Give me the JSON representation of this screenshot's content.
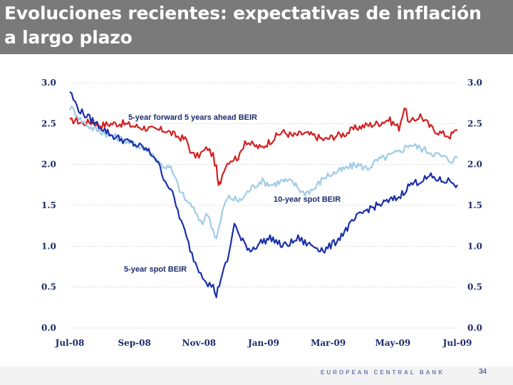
{
  "slide": {
    "title_line1": "Evoluciones recientes: expectativas de inflación",
    "title_line2": "a largo plazo",
    "footer_bank": "EUROPEAN CENTRAL BANK",
    "page_number": "34"
  },
  "colors": {
    "forward": "#d42020",
    "spot10": "#9fcbe8",
    "spot5": "#1a2fa8",
    "axis_text": "#1b2b6b",
    "grid": "#c8c8c8"
  },
  "chart_data": {
    "type": "line",
    "title": "",
    "xlabel": "",
    "ylabel": "",
    "ylim": [
      0.0,
      3.0
    ],
    "yticks": [
      "0.0",
      "0.5",
      "1.0",
      "1.5",
      "2.0",
      "2.5",
      "3.0"
    ],
    "xticks": [
      "Jul-08",
      "Sep-08",
      "Nov-08",
      "Jan-09",
      "Mar-09",
      "May-09",
      "Jul-09"
    ],
    "x_start": "2008-07-01",
    "x_end": "2009-07-01",
    "series": [
      {
        "name": "5-year forward 5 years ahead BEIR",
        "label": "5-year forward 5 years ahead BEIR",
        "color_key": "forward",
        "points": [
          [
            0,
            2.52
          ],
          [
            5,
            2.55
          ],
          [
            12,
            2.5
          ],
          [
            20,
            2.52
          ],
          [
            30,
            2.48
          ],
          [
            40,
            2.5
          ],
          [
            50,
            2.5
          ],
          [
            60,
            2.47
          ],
          [
            70,
            2.45
          ],
          [
            80,
            2.42
          ],
          [
            90,
            2.42
          ],
          [
            100,
            2.35
          ],
          [
            110,
            2.3
          ],
          [
            115,
            2.12
          ],
          [
            120,
            2.1
          ],
          [
            125,
            2.15
          ],
          [
            130,
            2.2
          ],
          [
            135,
            2.1
          ],
          [
            138,
            1.95
          ],
          [
            140,
            1.72
          ],
          [
            142,
            1.8
          ],
          [
            145,
            1.95
          ],
          [
            150,
            2.05
          ],
          [
            160,
            2.1
          ],
          [
            165,
            2.3
          ],
          [
            170,
            2.25
          ],
          [
            180,
            2.2
          ],
          [
            190,
            2.3
          ],
          [
            200,
            2.4
          ],
          [
            210,
            2.35
          ],
          [
            220,
            2.38
          ],
          [
            230,
            2.35
          ],
          [
            240,
            2.3
          ],
          [
            250,
            2.35
          ],
          [
            260,
            2.38
          ],
          [
            270,
            2.45
          ],
          [
            280,
            2.48
          ],
          [
            290,
            2.5
          ],
          [
            300,
            2.55
          ],
          [
            310,
            2.45
          ],
          [
            315,
            2.7
          ],
          [
            320,
            2.5
          ],
          [
            330,
            2.6
          ],
          [
            340,
            2.45
          ],
          [
            350,
            2.38
          ],
          [
            358,
            2.35
          ],
          [
            365,
            2.42
          ]
        ]
      },
      {
        "name": "10-year spot BEIR",
        "label": "10-year spot BEIR",
        "color_key": "spot10",
        "points": [
          [
            0,
            2.7
          ],
          [
            5,
            2.65
          ],
          [
            10,
            2.55
          ],
          [
            20,
            2.45
          ],
          [
            30,
            2.4
          ],
          [
            40,
            2.35
          ],
          [
            50,
            2.3
          ],
          [
            60,
            2.25
          ],
          [
            70,
            2.2
          ],
          [
            80,
            2.1
          ],
          [
            85,
            2.0
          ],
          [
            95,
            1.95
          ],
          [
            100,
            1.8
          ],
          [
            105,
            1.65
          ],
          [
            110,
            1.55
          ],
          [
            115,
            1.5
          ],
          [
            120,
            1.35
          ],
          [
            125,
            1.3
          ],
          [
            130,
            1.4
          ],
          [
            135,
            1.2
          ],
          [
            138,
            1.1
          ],
          [
            142,
            1.3
          ],
          [
            145,
            1.5
          ],
          [
            150,
            1.6
          ],
          [
            160,
            1.55
          ],
          [
            170,
            1.7
          ],
          [
            180,
            1.8
          ],
          [
            190,
            1.75
          ],
          [
            200,
            1.8
          ],
          [
            210,
            1.78
          ],
          [
            220,
            1.65
          ],
          [
            230,
            1.7
          ],
          [
            240,
            1.85
          ],
          [
            250,
            1.9
          ],
          [
            260,
            1.95
          ],
          [
            270,
            2.0
          ],
          [
            280,
            1.95
          ],
          [
            290,
            2.05
          ],
          [
            300,
            2.1
          ],
          [
            310,
            2.15
          ],
          [
            320,
            2.25
          ],
          [
            330,
            2.2
          ],
          [
            340,
            2.15
          ],
          [
            350,
            2.1
          ],
          [
            358,
            2.05
          ],
          [
            365,
            2.08
          ]
        ]
      },
      {
        "name": "5-year spot BEIR",
        "label": "5-year spot BEIR",
        "color_key": "spot5",
        "points": [
          [
            0,
            2.9
          ],
          [
            5,
            2.75
          ],
          [
            10,
            2.65
          ],
          [
            20,
            2.55
          ],
          [
            30,
            2.45
          ],
          [
            40,
            2.35
          ],
          [
            50,
            2.3
          ],
          [
            60,
            2.25
          ],
          [
            70,
            2.2
          ],
          [
            80,
            2.1
          ],
          [
            85,
            1.95
          ],
          [
            90,
            1.8
          ],
          [
            95,
            1.7
          ],
          [
            100,
            1.5
          ],
          [
            105,
            1.3
          ],
          [
            110,
            1.1
          ],
          [
            115,
            0.9
          ],
          [
            120,
            0.75
          ],
          [
            125,
            0.65
          ],
          [
            130,
            0.55
          ],
          [
            135,
            0.5
          ],
          [
            138,
            0.4
          ],
          [
            142,
            0.6
          ],
          [
            145,
            0.7
          ],
          [
            150,
            0.9
          ],
          [
            155,
            1.3
          ],
          [
            160,
            1.1
          ],
          [
            170,
            0.95
          ],
          [
            180,
            1.05
          ],
          [
            190,
            1.1
          ],
          [
            200,
            1.0
          ],
          [
            210,
            1.05
          ],
          [
            215,
            1.1
          ],
          [
            220,
            1.05
          ],
          [
            230,
            1.0
          ],
          [
            240,
            0.95
          ],
          [
            250,
            1.05
          ],
          [
            260,
            1.2
          ],
          [
            270,
            1.35
          ],
          [
            280,
            1.45
          ],
          [
            290,
            1.5
          ],
          [
            300,
            1.55
          ],
          [
            310,
            1.6
          ],
          [
            320,
            1.75
          ],
          [
            330,
            1.8
          ],
          [
            340,
            1.85
          ],
          [
            350,
            1.8
          ],
          [
            358,
            1.8
          ],
          [
            365,
            1.75
          ]
        ]
      }
    ]
  }
}
